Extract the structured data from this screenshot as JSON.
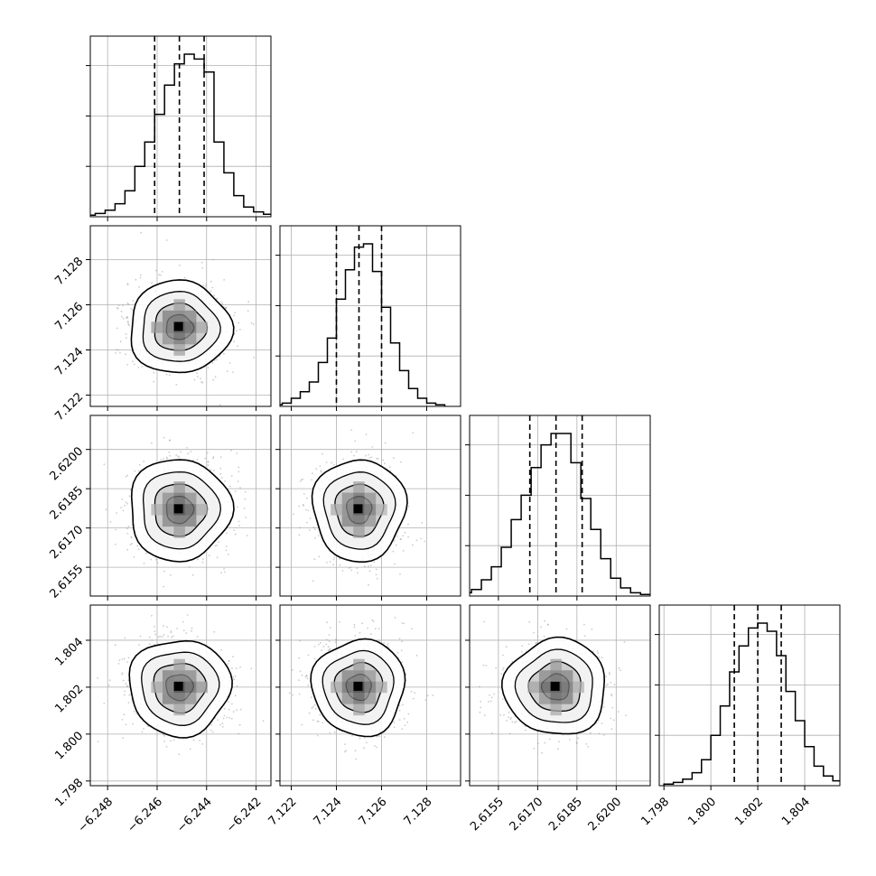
{
  "chart_data": {
    "type": "corner",
    "grid": true,
    "parameters": [
      {
        "range": [
          -6.2487,
          -6.2414
        ],
        "ticks": [
          -6.248,
          -6.246,
          -6.244,
          -6.242
        ],
        "tick_labels": [
          "−6.248",
          "−6.246",
          "−6.244",
          "−6.242"
        ],
        "center": -6.2451,
        "sigma": 0.001,
        "quantiles": [
          -6.2461,
          -6.2451,
          -6.2441
        ],
        "hist_ticks": 3
      },
      {
        "range": [
          7.1215,
          7.1295
        ],
        "ticks": [
          7.122,
          7.124,
          7.126,
          7.128
        ],
        "tick_labels": [
          "7.122",
          "7.124",
          "7.126",
          "7.128"
        ],
        "center": 7.125,
        "sigma": 0.001,
        "quantiles": [
          7.124,
          7.125,
          7.126
        ],
        "hist_ticks": 3
      },
      {
        "range": [
          2.6144,
          2.6213
        ],
        "ticks": [
          2.6155,
          2.617,
          2.6185,
          2.62
        ],
        "tick_labels": [
          "2.6155",
          "2.6170",
          "2.6185",
          "2.6200"
        ],
        "center": 2.6177,
        "sigma": 0.00095,
        "quantiles": [
          2.6167,
          2.6177,
          2.6187
        ],
        "hist_ticks": 3
      },
      {
        "range": [
          1.7978,
          1.8055
        ],
        "ticks": [
          1.798,
          1.8,
          1.802,
          1.804
        ],
        "tick_labels": [
          "1.798",
          "1.800",
          "1.802",
          "1.804"
        ],
        "center": 1.802,
        "sigma": 0.001,
        "quantiles": [
          1.801,
          1.802,
          1.803
        ],
        "hist_ticks": 3
      }
    ],
    "histograms": [
      [
        0.005,
        0.01,
        0.02,
        0.04,
        0.08,
        0.16,
        0.31,
        0.46,
        0.63,
        0.81,
        0.94,
        1.0,
        0.97,
        0.89,
        0.46,
        0.27,
        0.13,
        0.06,
        0.03,
        0.015,
        0.005
      ],
      [
        0.01,
        0.02,
        0.05,
        0.09,
        0.15,
        0.27,
        0.42,
        0.66,
        0.84,
        0.98,
        1.0,
        0.83,
        0.61,
        0.39,
        0.22,
        0.11,
        0.05,
        0.02,
        0.01
      ],
      [
        0.02,
        0.04,
        0.1,
        0.18,
        0.3,
        0.47,
        0.62,
        0.79,
        0.93,
        1.0,
        1.0,
        0.82,
        0.6,
        0.41,
        0.23,
        0.11,
        0.05,
        0.02,
        0.01
      ],
      [
        0.01,
        0.02,
        0.04,
        0.08,
        0.16,
        0.31,
        0.49,
        0.7,
        0.86,
        0.97,
        1.0,
        0.95,
        0.8,
        0.58,
        0.4,
        0.24,
        0.12,
        0.06,
        0.03,
        0.01
      ]
    ],
    "colors": {
      "line": "#000000",
      "grid": "#b0b0b0",
      "scatter": "#9a9a9a",
      "density": "#000000",
      "fill": "#ffffff"
    }
  }
}
